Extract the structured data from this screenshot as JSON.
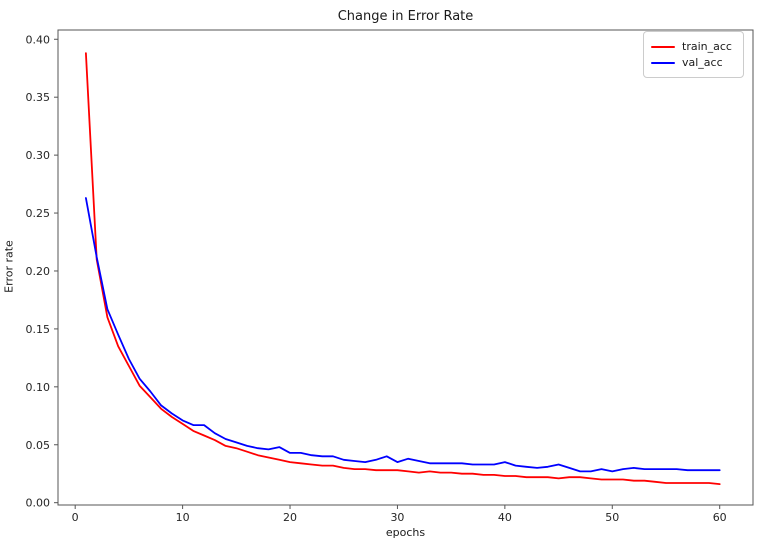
{
  "figure": {
    "title": "Change in Error Rate",
    "xlabel": "epochs",
    "ylabel": "Error rate",
    "background": "#ffffff",
    "spine_color": "#555555",
    "tick_label_color": "#262626"
  },
  "legend": {
    "position": "upper right",
    "items": [
      {
        "label": "train_acc",
        "color": "#ff0000"
      },
      {
        "label": "val_acc",
        "color": "#0000ff"
      }
    ]
  },
  "chart_data": {
    "type": "line",
    "title": "Change in Error Rate",
    "xlabel": "epochs",
    "ylabel": "Error rate",
    "grid": false,
    "legend_position": "upper right",
    "xlim": [
      -1.6,
      63.1
    ],
    "ylim": [
      -0.002,
      0.408
    ],
    "xticks": [
      0,
      10,
      20,
      30,
      40,
      50,
      60
    ],
    "xtick_labels": [
      "0",
      "10",
      "20",
      "30",
      "40",
      "50",
      "60"
    ],
    "yticks": [
      0.0,
      0.05,
      0.1,
      0.15,
      0.2,
      0.25,
      0.3,
      0.35,
      0.4
    ],
    "ytick_labels": [
      "0.00",
      "0.05",
      "0.10",
      "0.15",
      "0.20",
      "0.25",
      "0.30",
      "0.35",
      "0.40"
    ],
    "x": [
      1,
      2,
      3,
      4,
      5,
      6,
      7,
      8,
      9,
      10,
      11,
      12,
      13,
      14,
      15,
      16,
      17,
      18,
      19,
      20,
      21,
      22,
      23,
      24,
      25,
      26,
      27,
      28,
      29,
      30,
      31,
      32,
      33,
      34,
      35,
      36,
      37,
      38,
      39,
      40,
      41,
      42,
      43,
      44,
      45,
      46,
      47,
      48,
      49,
      50,
      51,
      52,
      53,
      54,
      55,
      56,
      57,
      58,
      59,
      60
    ],
    "series": [
      {
        "name": "train_acc",
        "color": "#ff0000",
        "values": [
          0.388,
          0.21,
          0.16,
          0.135,
          0.118,
          0.101,
          0.091,
          0.081,
          0.074,
          0.068,
          0.062,
          0.058,
          0.054,
          0.049,
          0.047,
          0.044,
          0.041,
          0.039,
          0.037,
          0.035,
          0.034,
          0.033,
          0.032,
          0.032,
          0.03,
          0.029,
          0.029,
          0.028,
          0.028,
          0.028,
          0.027,
          0.026,
          0.027,
          0.026,
          0.026,
          0.025,
          0.025,
          0.024,
          0.024,
          0.023,
          0.023,
          0.022,
          0.022,
          0.022,
          0.021,
          0.022,
          0.022,
          0.021,
          0.02,
          0.02,
          0.02,
          0.019,
          0.019,
          0.018,
          0.017,
          0.017,
          0.017,
          0.017,
          0.017,
          0.016
        ]
      },
      {
        "name": "val_acc",
        "color": "#0000ff",
        "values": [
          0.263,
          0.212,
          0.167,
          0.145,
          0.124,
          0.107,
          0.096,
          0.084,
          0.077,
          0.071,
          0.067,
          0.067,
          0.06,
          0.055,
          0.052,
          0.049,
          0.047,
          0.046,
          0.048,
          0.043,
          0.043,
          0.041,
          0.04,
          0.04,
          0.037,
          0.036,
          0.035,
          0.037,
          0.04,
          0.035,
          0.038,
          0.036,
          0.034,
          0.034,
          0.034,
          0.034,
          0.033,
          0.033,
          0.033,
          0.035,
          0.032,
          0.031,
          0.03,
          0.031,
          0.033,
          0.03,
          0.027,
          0.027,
          0.029,
          0.027,
          0.029,
          0.03,
          0.029,
          0.029,
          0.029,
          0.029,
          0.028,
          0.028,
          0.028,
          0.028
        ]
      }
    ]
  }
}
